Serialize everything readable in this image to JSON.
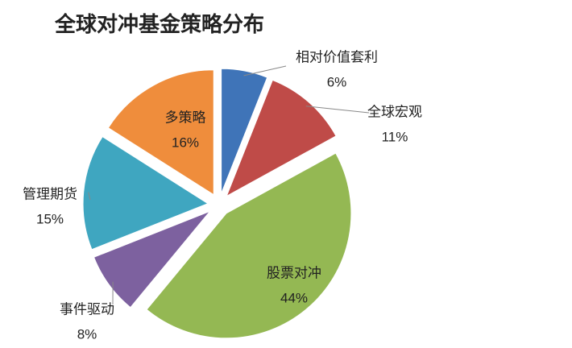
{
  "chart_data": {
    "type": "pie",
    "title": "全球对冲基金策略分布",
    "categories": [
      "相对价值套利",
      "全球宏观",
      "股票对冲",
      "事件驱动",
      "管理期货",
      "多策略"
    ],
    "values": [
      6,
      11,
      44,
      8,
      15,
      16
    ],
    "value_labels": [
      "6%",
      "11%",
      "44%",
      "8%",
      "15%",
      "16%"
    ],
    "colors": [
      "#3f74b8",
      "#bf4b48",
      "#94b853",
      "#7d619f",
      "#3fa6c0",
      "#ef8d3c"
    ]
  }
}
